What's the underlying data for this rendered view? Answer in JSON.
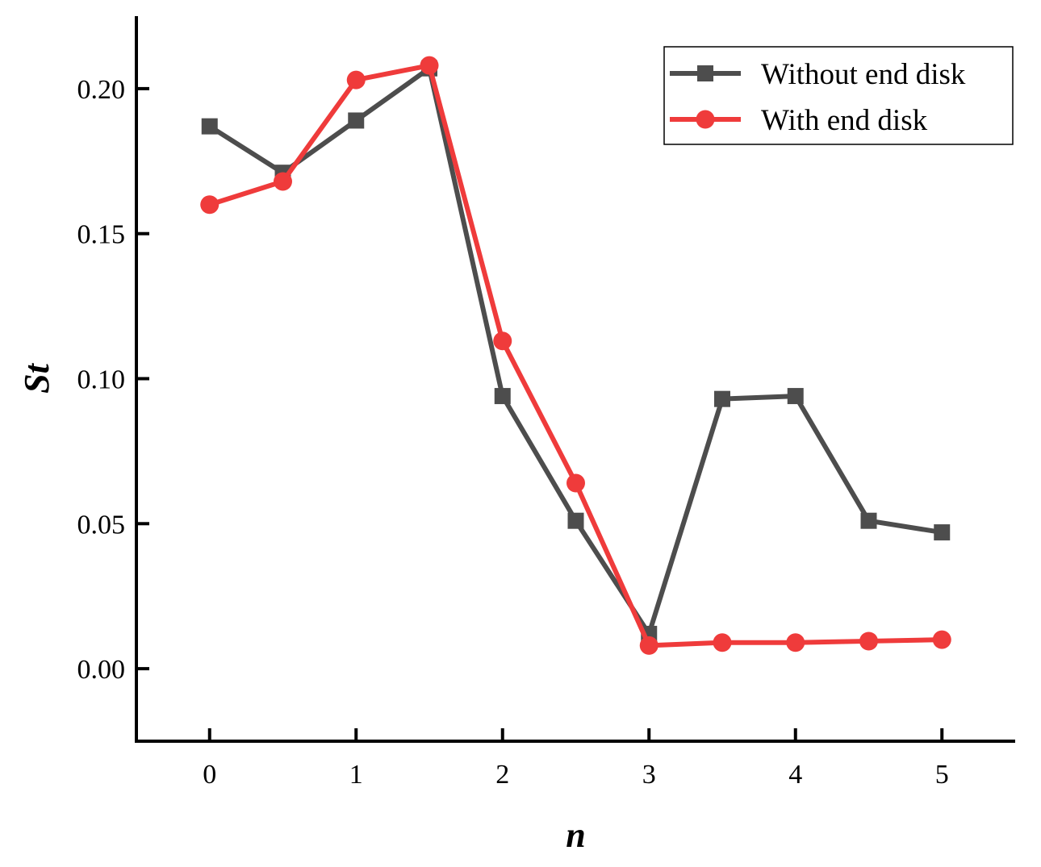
{
  "chart_data": {
    "type": "line",
    "title": "",
    "xlabel": "n",
    "ylabel": "St",
    "xlim": [
      -0.5,
      5.5
    ],
    "ylim": [
      -0.025,
      0.225
    ],
    "xticks": [
      0,
      1,
      2,
      3,
      4,
      5
    ],
    "xtick_labels": [
      "0",
      "1",
      "2",
      "3",
      "4",
      "5"
    ],
    "yticks": [
      0.0,
      0.05,
      0.1,
      0.15,
      0.2
    ],
    "ytick_labels": [
      "0.00",
      "0.05",
      "0.10",
      "0.15",
      "0.20"
    ],
    "grid": false,
    "legend_position": "top-right",
    "series": [
      {
        "name": "Without end disk",
        "color": "#4d4d4d",
        "marker": "square",
        "x": [
          0,
          0.5,
          1,
          1.5,
          2,
          2.5,
          3,
          3.5,
          4,
          4.5,
          5
        ],
        "y": [
          0.187,
          0.171,
          0.189,
          0.207,
          0.094,
          0.051,
          0.012,
          0.093,
          0.094,
          0.051,
          0.047
        ]
      },
      {
        "name": "With end disk",
        "color": "#ef3b3b",
        "marker": "circle",
        "x": [
          0,
          0.5,
          1,
          1.5,
          2,
          2.5,
          3,
          3.5,
          4,
          4.5,
          5
        ],
        "y": [
          0.16,
          0.168,
          0.203,
          0.208,
          0.113,
          0.064,
          0.008,
          0.009,
          0.009,
          0.0095,
          0.01
        ]
      }
    ]
  }
}
